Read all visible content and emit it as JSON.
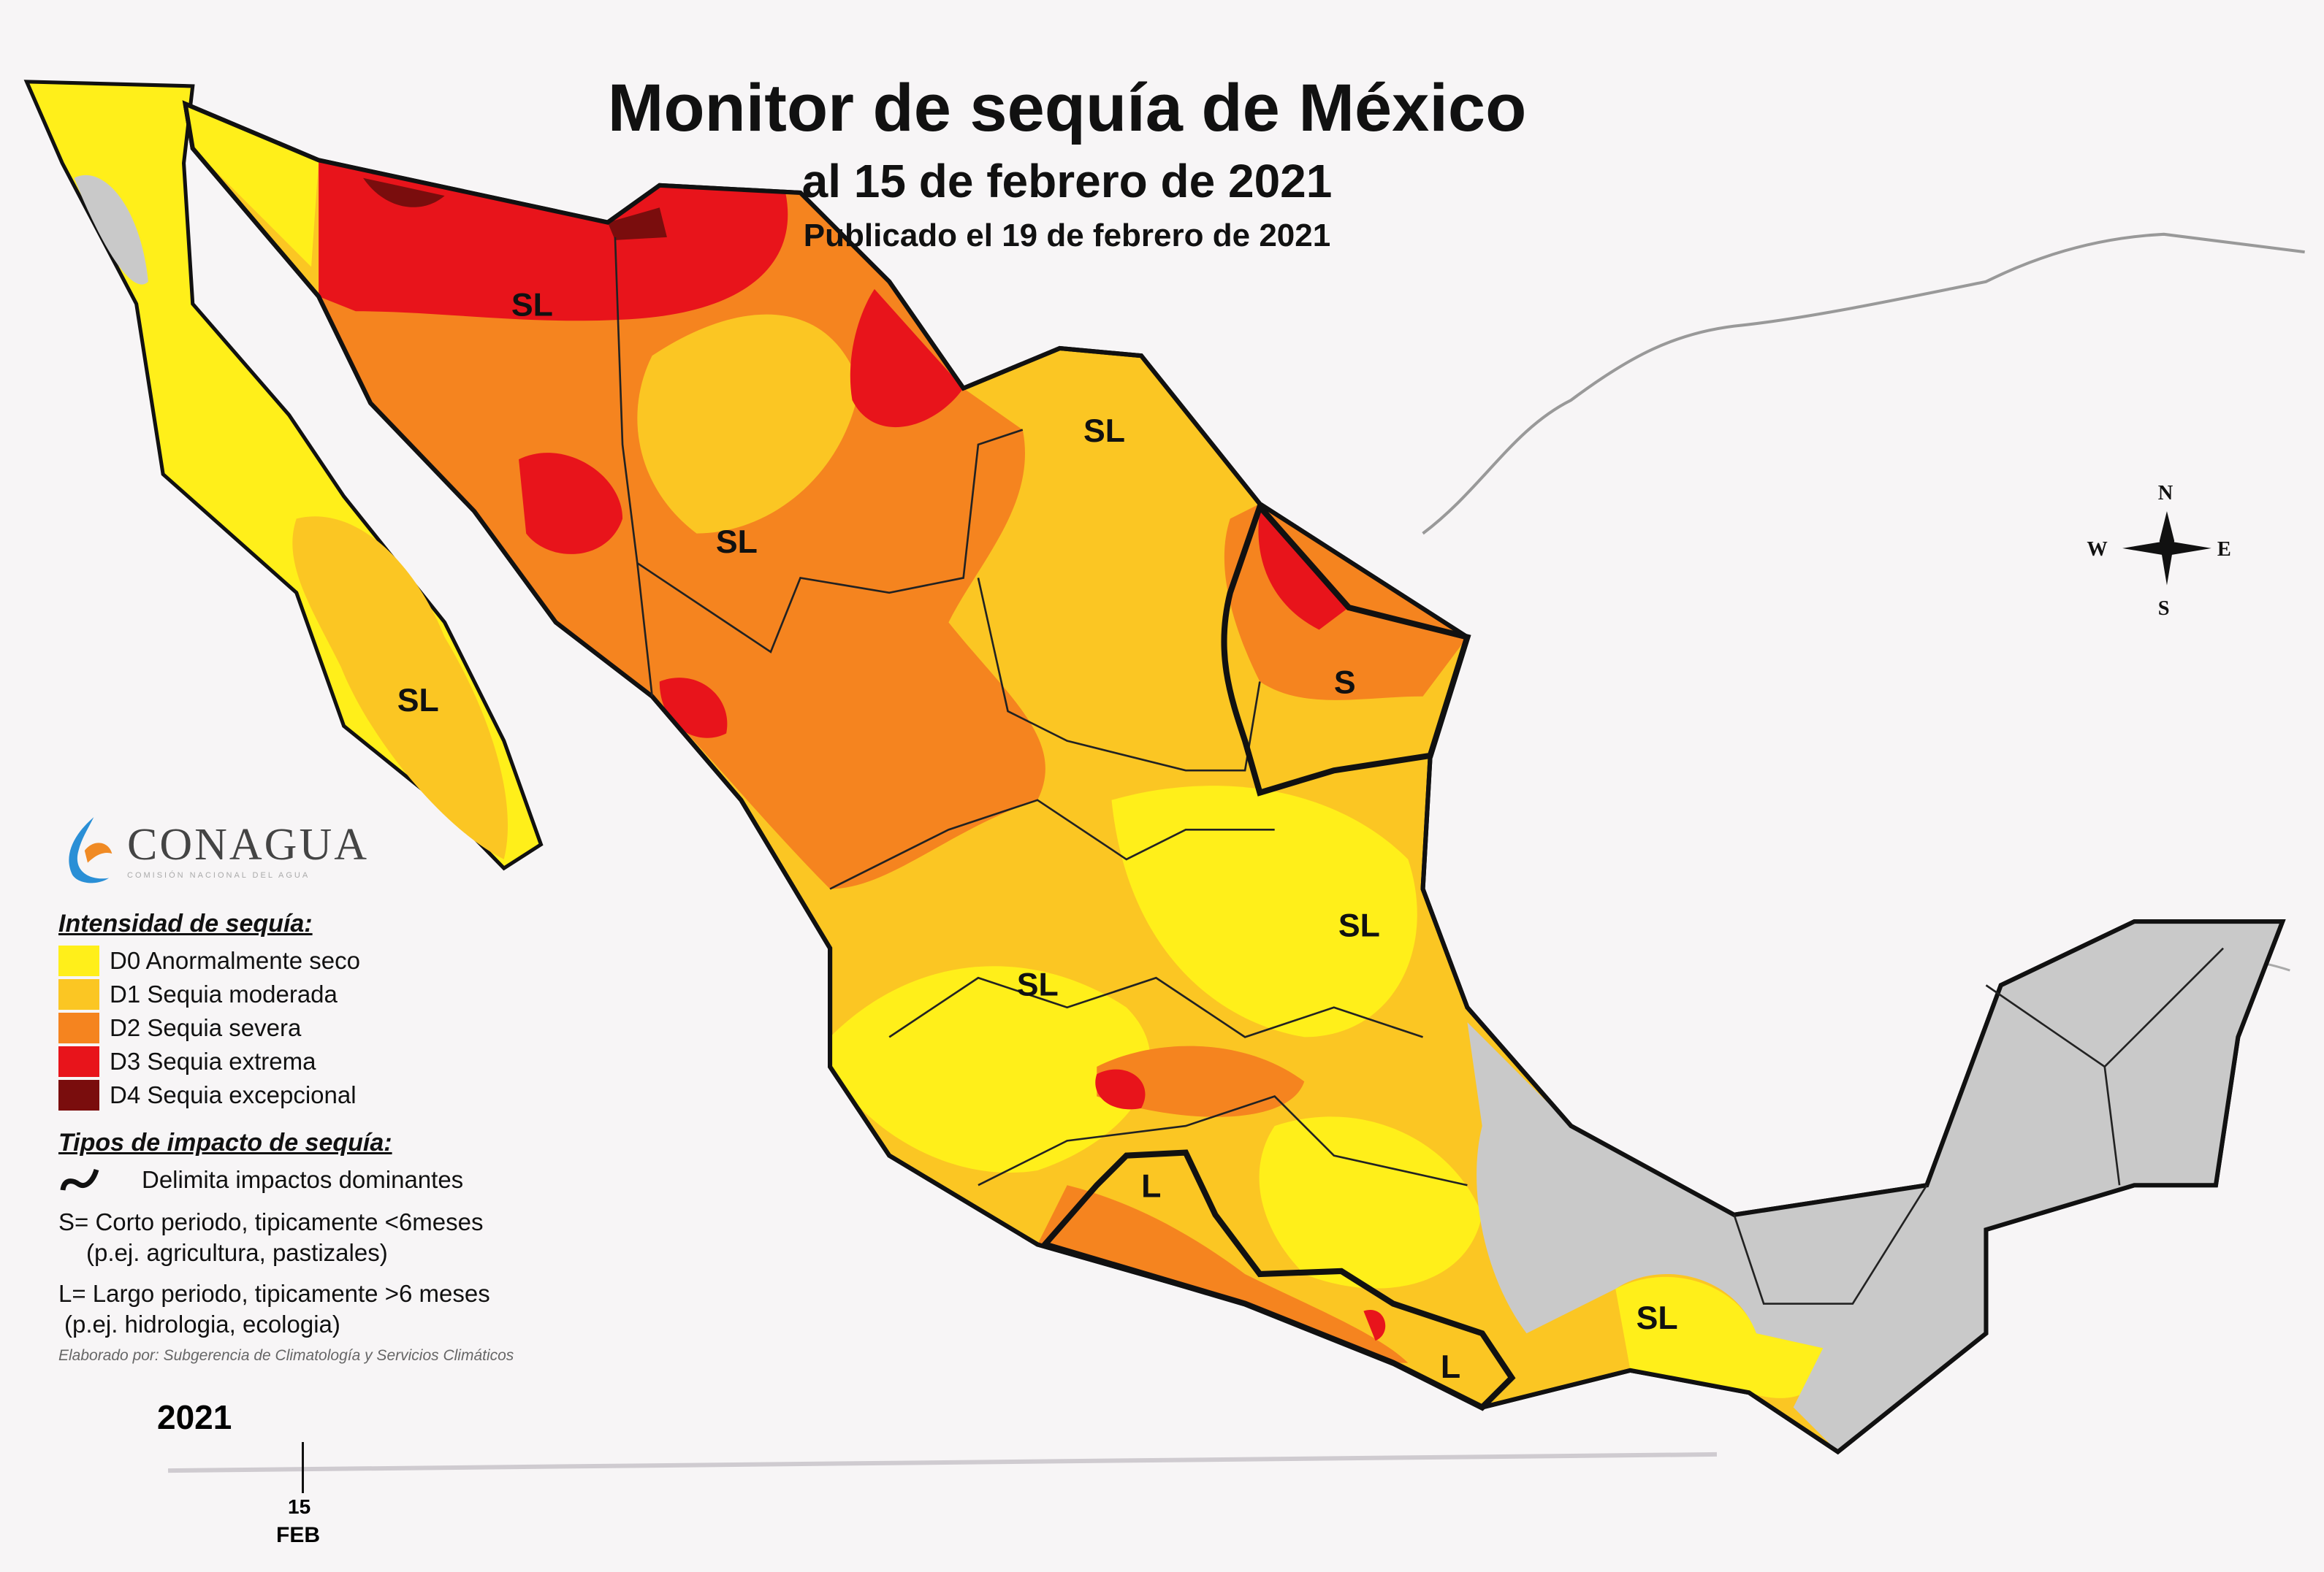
{
  "title": "Monitor de sequía de México",
  "subtitle": "al 15 de febrero de 2021",
  "published": "Publicado el 19 de febrero de 2021",
  "logo": {
    "name": "CONAGUA",
    "subtitle": "COMISIÓN NACIONAL DEL AGUA"
  },
  "legend": {
    "intensity_title": "Intensidad de sequía:",
    "items": [
      {
        "code": "D0",
        "label": "D0 Anormalmente seco",
        "color": "#ffef1a"
      },
      {
        "code": "D1",
        "label": "D1 Sequia moderada",
        "color": "#fbc623"
      },
      {
        "code": "D2",
        "label": "D2 Sequia severa",
        "color": "#f5841f"
      },
      {
        "code": "D3",
        "label": "D3 Sequia extrema",
        "color": "#e8141b"
      },
      {
        "code": "D4",
        "label": "D4 Sequia excepcional",
        "color": "#7a0d0d"
      }
    ],
    "impact_title": "Tipos de impacto de sequía:",
    "impact_line": "Delimita impactos dominantes",
    "s_line1": "S= Corto periodo, tipicamente <6meses",
    "s_line2": "(p.ej. agricultura, pastizales)",
    "l_line1": "L= Largo periodo, tipicamente >6 meses",
    "l_line2": "(p.ej. hidrologia, ecologia)",
    "credit": "Elaborado por: Subgerencia de Climatología y Servicios Climáticos"
  },
  "compass": {
    "n": "N",
    "s": "S",
    "e": "E",
    "w": "W"
  },
  "impact_labels": [
    "SL",
    "SL",
    "SL",
    "SL",
    "SL",
    "SL",
    "S",
    "L",
    "L",
    "SL"
  ],
  "timeline": {
    "year": "2021",
    "day": "15",
    "month": "FEB"
  },
  "colors": {
    "no_drought": "#c9c9c9",
    "background": "#f7f5f6",
    "boundary": "#111111"
  }
}
